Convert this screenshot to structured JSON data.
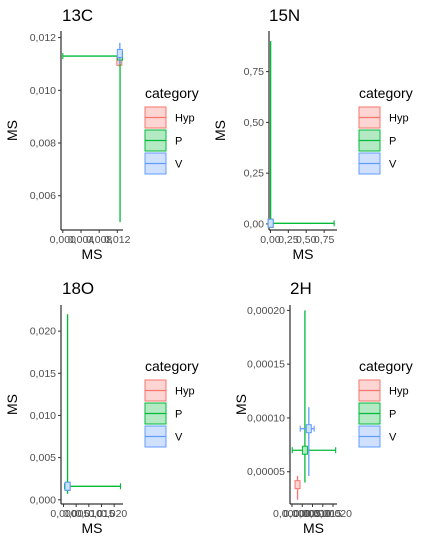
{
  "chart_data": [
    {
      "type": "scatter",
      "title": "13C",
      "xlabel": "MS",
      "ylabel": "MS",
      "xlim": [
        -0.0004,
        0.01325
      ],
      "ylim": [
        0.0047,
        0.01225
      ],
      "x_ticks": [
        0.0,
        0.004,
        0.008,
        0.012
      ],
      "x_tick_labels": [
        "0,000",
        "0,004",
        "0,008",
        "0,012"
      ],
      "y_ticks": [
        0.006,
        0.008,
        0.01,
        0.012
      ],
      "y_tick_labels": [
        "0,006",
        "0,008",
        "0,010",
        "0,012"
      ],
      "legend": {
        "title": "category",
        "position": "right",
        "entries": [
          "Hyp",
          "P",
          "V"
        ]
      },
      "colors": {
        "Hyp": "#F8766D",
        "P": "#00BA38",
        "V": "#619CFF"
      },
      "series": [
        {
          "name": "Hyp",
          "x": 0.01245,
          "xmin": 0.0124,
          "xmax": 0.0125,
          "y": 0.0111,
          "ymin": 0.0109,
          "ymax": 0.0113
        },
        {
          "name": "P",
          "x": 0.0126,
          "xmin": 0.0,
          "xmax": 0.0126,
          "y": 0.0113,
          "ymin": 0.005,
          "ymax": 0.0113
        },
        {
          "name": "V",
          "x": 0.01255,
          "xmin": 0.0124,
          "xmax": 0.0128,
          "y": 0.0114,
          "ymin": 0.011,
          "ymax": 0.0118
        }
      ]
    },
    {
      "type": "scatter",
      "title": "15N",
      "xlabel": "MS",
      "ylabel": "MS",
      "xlim": [
        -0.02,
        0.93
      ],
      "ylim": [
        -0.03,
        0.95
      ],
      "x_ticks": [
        0.0,
        0.25,
        0.5,
        0.75
      ],
      "x_tick_labels": [
        "0,00",
        "0,25",
        "0,50",
        "0,75"
      ],
      "y_ticks": [
        0.0,
        0.25,
        0.5,
        0.75
      ],
      "y_tick_labels": [
        "0,00",
        "0,25",
        "0,50",
        "0,75"
      ],
      "legend": {
        "title": "category",
        "position": "right",
        "entries": [
          "Hyp",
          "P",
          "V"
        ]
      },
      "colors": {
        "Hyp": "#F8766D",
        "P": "#00BA38",
        "V": "#619CFF"
      },
      "series": [
        {
          "name": "Hyp",
          "x": 0.003,
          "xmin": 0.002,
          "xmax": 0.004,
          "y": 0.003,
          "ymin": 0.002,
          "ymax": 0.004
        },
        {
          "name": "P",
          "x": 0.003,
          "xmin": 0.0,
          "xmax": 0.89,
          "y": 0.003,
          "ymin": 0.0,
          "ymax": 0.9
        },
        {
          "name": "V",
          "x": 0.003,
          "xmin": 0.002,
          "xmax": 0.004,
          "y": 0.003,
          "ymin": 0.002,
          "ymax": 0.004
        }
      ]
    },
    {
      "type": "scatter",
      "title": "18O",
      "xlabel": "MS",
      "ylabel": "MS",
      "xlim": [
        -0.001,
        0.0235
      ],
      "ylim": [
        -0.0005,
        0.0231
      ],
      "x_ticks": [
        0.0,
        0.005,
        0.01,
        0.015,
        0.02
      ],
      "x_tick_labels": [
        "0,000",
        "0,005",
        "0,010",
        "0,015",
        "0,020"
      ],
      "y_ticks": [
        0.0,
        0.005,
        0.01,
        0.015,
        0.02
      ],
      "y_tick_labels": [
        "0,000",
        "0,005",
        "0,010",
        "0,015",
        "0,020"
      ],
      "legend": {
        "title": "category",
        "position": "right",
        "entries": [
          "Hyp",
          "P",
          "V"
        ]
      },
      "colors": {
        "Hyp": "#F8766D",
        "P": "#00BA38",
        "V": "#619CFF"
      },
      "series": [
        {
          "name": "Hyp",
          "x": 0.0016,
          "xmin": 0.0014,
          "xmax": 0.0018,
          "y": 0.0016,
          "ymin": 0.0014,
          "ymax": 0.0018
        },
        {
          "name": "P",
          "x": 0.0016,
          "xmin": 0.0004,
          "xmax": 0.0225,
          "y": 0.0016,
          "ymin": 0.0007,
          "ymax": 0.022
        },
        {
          "name": "V",
          "x": 0.0016,
          "xmin": 0.0014,
          "xmax": 0.0018,
          "y": 0.0016,
          "ymin": 0.0014,
          "ymax": 0.0018
        }
      ]
    },
    {
      "type": "scatter",
      "title": "2H",
      "xlabel": "MS",
      "ylabel": "MS",
      "xlim": [
        -9.8e-06,
        0.0002195
      ],
      "ylim": [
        2e-05,
        0.000205
      ],
      "x_ticks": [
        0.0,
        5e-05,
        0.0001,
        0.00015,
        0.0002
      ],
      "x_tick_labels": [
        "0,00000",
        "0,00005",
        "0,00010",
        "0,00015",
        "0,00020"
      ],
      "y_ticks": [
        5e-05,
        0.0001,
        0.00015,
        0.0002
      ],
      "y_tick_labels": [
        "0,00005",
        "0,00010",
        "0,00015",
        "0,00020"
      ],
      "legend": {
        "title": "category",
        "position": "right",
        "entries": [
          "Hyp",
          "P",
          "V"
        ]
      },
      "colors": {
        "Hyp": "#F8766D",
        "P": "#00BA38",
        "V": "#619CFF"
      },
      "series": [
        {
          "name": "Hyp",
          "x": 2.7e-05,
          "xmin": 2e-05,
          "xmax": 3.4e-05,
          "y": 3.8e-05,
          "ymin": 2.4e-05,
          "ymax": 4.6e-05
        },
        {
          "name": "P",
          "x": 6.3e-05,
          "xmin": 1e-06,
          "xmax": 0.000213,
          "y": 7e-05,
          "ymin": 4e-05,
          "ymax": 0.0002
        },
        {
          "name": "V",
          "x": 8.2e-05,
          "xmin": 4e-05,
          "xmax": 0.000108,
          "y": 9e-05,
          "ymin": 4.6e-05,
          "ymax": 0.00011
        }
      ]
    }
  ]
}
